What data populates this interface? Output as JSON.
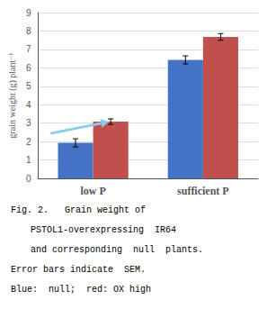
{
  "chart_data": {
    "type": "bar",
    "categories": [
      "low P",
      "sufficient P"
    ],
    "series": [
      {
        "color": "#4472C4",
        "values": [
          1.93,
          6.43
        ],
        "errors": [
          0.22,
          0.22
        ]
      },
      {
        "color": "#C0504D",
        "values": [
          3.08,
          7.68
        ],
        "errors": [
          0.15,
          0.18
        ]
      }
    ],
    "ylabel": "grain weight (g) plant⁻¹",
    "ylim": [
      0,
      9
    ],
    "yticks": [
      0,
      1,
      2,
      3,
      4,
      5,
      6,
      7,
      8,
      9
    ],
    "grid": true,
    "arrow": {
      "color": "#87CEEB",
      "category": "low P"
    },
    "annotations": [
      "Fig. 2.   Grain weight of",
      "PSTOL1-overexpressing  IR64",
      "and corresponding  null  plants.",
      "Error bars indicate  SEM.",
      "Blue:  null;  red: OX high"
    ]
  }
}
